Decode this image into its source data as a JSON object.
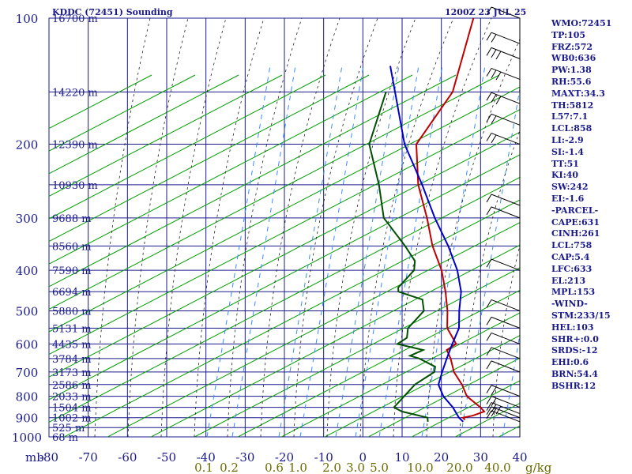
{
  "title_left": "KDDC (72451) Sounding",
  "title_right": "1200Z 23 JUL 25",
  "indices": [
    "WMO:72451",
    "TP:105",
    "FRZ:572",
    "WB0:636",
    "PW:1.38",
    "RH:55.6",
    "MAXT:34.3",
    "TH:5812",
    "L57:7.1",
    "LCL:858",
    "LI:-2.9",
    "SI:-1.4",
    "TT:51",
    "KI:40",
    "SW:242",
    "EI:-1.6",
    "-PARCEL-",
    "CAPE:631",
    "CINH:261",
    "LCL:758",
    "CAP:5.4",
    "LFC:633",
    "EL:213",
    "MPL:153",
    "-WIND-",
    "STM:233/15",
    "HEL:103",
    "SHR+:0.0",
    "SRDS:-12",
    "EHI:0.6",
    "BRN:54.4",
    "BSHR:12"
  ],
  "colors": {
    "grid": "#1a1a8c",
    "dry_adiabat": "#00a000",
    "moist_adiabat": "#222222",
    "mixing_ratio": "#3a8cff",
    "temperature": "#c00000",
    "dewpoint": "#005000",
    "parcel": "#0000c8",
    "wind": "#000000",
    "mix_label": "#6b6b00"
  },
  "chart_data": {
    "type": "line",
    "title": "KDDC (72451) Sounding",
    "y_unit_label": "mb",
    "x_unit_label": "g/kg",
    "x_ticks": [
      -80,
      -70,
      -60,
      -50,
      -40,
      -30,
      -20,
      -10,
      0,
      10,
      20,
      30,
      40
    ],
    "x_tick_labels": [
      "-80",
      "-70",
      "-60",
      "-50",
      "-40",
      "-30",
      "-20",
      "-10",
      "0",
      "10",
      "20",
      "30",
      "40"
    ],
    "pressure_ticks": [
      100,
      200,
      300,
      400,
      500,
      600,
      700,
      800,
      900,
      1000
    ],
    "pressure_tick_labels": [
      "100",
      "200",
      "300",
      "400",
      "500",
      "600",
      "700",
      "800",
      "900",
      "1000"
    ],
    "height_labels": [
      {
        "p": 100,
        "label": "16700 m"
      },
      {
        "p": 150,
        "label": "14220 m"
      },
      {
        "p": 200,
        "label": "12390 m"
      },
      {
        "p": 250,
        "label": "10930 m"
      },
      {
        "p": 300,
        "label": "9688 m"
      },
      {
        "p": 350,
        "label": "8560 m"
      },
      {
        "p": 400,
        "label": "7590 m"
      },
      {
        "p": 450,
        "label": "6694 m"
      },
      {
        "p": 500,
        "label": "5880 m"
      },
      {
        "p": 550,
        "label": "5131 m"
      },
      {
        "p": 600,
        "label": "4435 m"
      },
      {
        "p": 650,
        "label": "3784 m"
      },
      {
        "p": 700,
        "label": "3173 m"
      },
      {
        "p": 750,
        "label": "2586 m"
      },
      {
        "p": 800,
        "label": "2033 m"
      },
      {
        "p": 850,
        "label": "1504 m"
      },
      {
        "p": 900,
        "label": "1002 m"
      },
      {
        "p": 950,
        "label": "525 m"
      },
      {
        "p": 1000,
        "label": "68 m"
      }
    ],
    "mixing_ratio_labels": [
      "0.1",
      "0.2",
      "0.6",
      "1.0",
      "2.0",
      "3.0",
      "5.0",
      "10.0",
      "20.0",
      "40.0"
    ],
    "mixing_ratio_values": [
      0.1,
      0.2,
      0.6,
      1.0,
      2.0,
      3.0,
      5.0,
      10.0,
      20.0,
      40.0
    ],
    "series": [
      {
        "role": "temperature",
        "points": [
          [
            100,
            -70
          ],
          [
            150,
            -58
          ],
          [
            200,
            -55
          ],
          [
            250,
            -45
          ],
          [
            300,
            -35
          ],
          [
            350,
            -27
          ],
          [
            400,
            -19
          ],
          [
            450,
            -13
          ],
          [
            500,
            -8
          ],
          [
            550,
            -4
          ],
          [
            600,
            2
          ],
          [
            620,
            1
          ],
          [
            650,
            4
          ],
          [
            700,
            8
          ],
          [
            750,
            13
          ],
          [
            800,
            17
          ],
          [
            850,
            23
          ],
          [
            870,
            25
          ],
          [
            890,
            23
          ],
          [
            900,
            21
          ],
          [
            910,
            22
          ]
        ]
      },
      {
        "role": "dewpoint",
        "points": [
          [
            150,
            -75
          ],
          [
            200,
            -67
          ],
          [
            250,
            -55
          ],
          [
            300,
            -46
          ],
          [
            350,
            -34
          ],
          [
            380,
            -28
          ],
          [
            400,
            -26
          ],
          [
            440,
            -26
          ],
          [
            450,
            -25
          ],
          [
            470,
            -17
          ],
          [
            480,
            -16
          ],
          [
            500,
            -14
          ],
          [
            550,
            -14
          ],
          [
            580,
            -12
          ],
          [
            600,
            -13
          ],
          [
            620,
            -5
          ],
          [
            640,
            -7
          ],
          [
            650,
            -4
          ],
          [
            680,
            2
          ],
          [
            700,
            3
          ],
          [
            750,
            1
          ],
          [
            800,
            1
          ],
          [
            850,
            1
          ],
          [
            870,
            4
          ],
          [
            900,
            12
          ],
          [
            920,
            13
          ]
        ]
      },
      {
        "role": "parcel",
        "points": [
          [
            130,
            -80
          ],
          [
            200,
            -58
          ],
          [
            250,
            -44
          ],
          [
            300,
            -33
          ],
          [
            350,
            -23
          ],
          [
            400,
            -15
          ],
          [
            450,
            -9
          ],
          [
            500,
            -5
          ],
          [
            550,
            -1
          ],
          [
            600,
            1
          ],
          [
            650,
            3
          ],
          [
            700,
            5
          ],
          [
            750,
            7
          ],
          [
            800,
            11
          ],
          [
            850,
            16
          ],
          [
            900,
            20
          ],
          [
            920,
            22
          ]
        ]
      }
    ],
    "winds": [
      {
        "p": 100,
        "speed": 10
      },
      {
        "p": 115,
        "speed": 20
      },
      {
        "p": 125,
        "speed": 25
      },
      {
        "p": 140,
        "speed": 25
      },
      {
        "p": 160,
        "speed": 25
      },
      {
        "p": 180,
        "speed": 20
      },
      {
        "p": 200,
        "speed": 15
      },
      {
        "p": 280,
        "speed": 10
      },
      {
        "p": 300,
        "speed": 5
      },
      {
        "p": 400,
        "speed": 5
      },
      {
        "p": 500,
        "speed": 10
      },
      {
        "p": 550,
        "speed": 10
      },
      {
        "p": 600,
        "speed": 10
      },
      {
        "p": 650,
        "speed": 5
      },
      {
        "p": 700,
        "speed": 5
      },
      {
        "p": 800,
        "speed": 15
      },
      {
        "p": 850,
        "speed": 20
      },
      {
        "p": 880,
        "speed": 25
      },
      {
        "p": 900,
        "speed": 20
      },
      {
        "p": 920,
        "speed": 10
      }
    ],
    "xlim": [
      -80,
      40
    ],
    "ylim": [
      100,
      1000
    ],
    "grid": true
  }
}
